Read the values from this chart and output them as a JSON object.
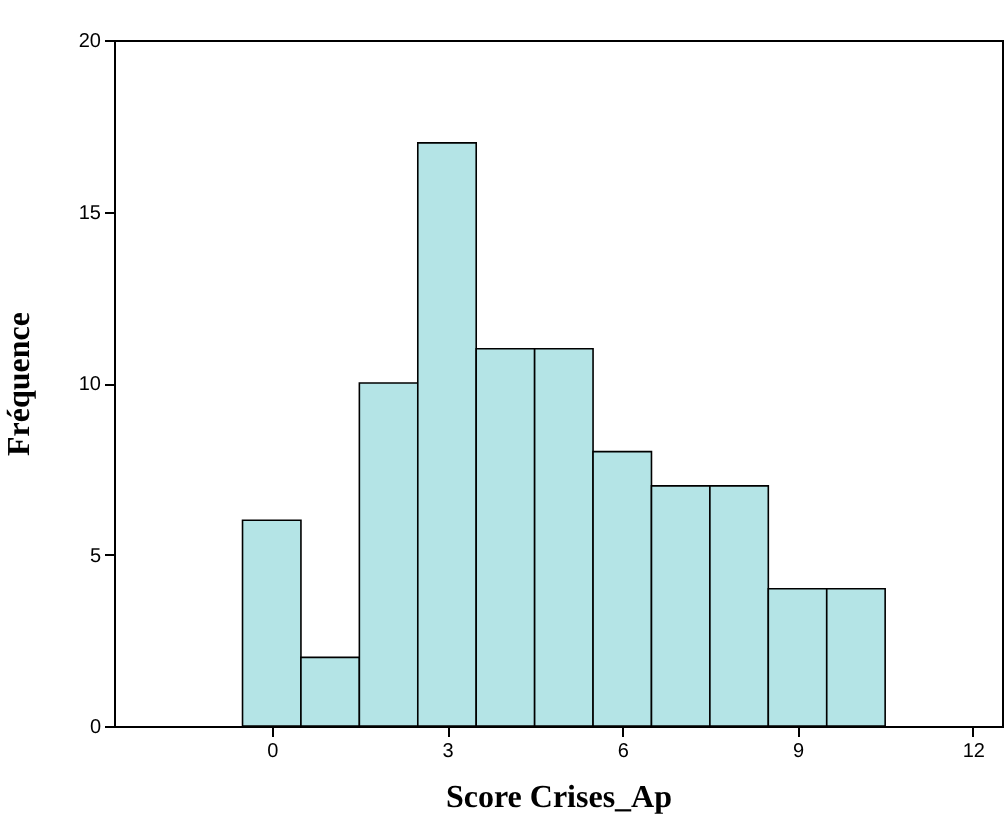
{
  "chart_data": {
    "type": "histogram",
    "xlabel": "Score Crises_Ap",
    "ylabel": "Fréquence",
    "bins": [
      -0.5,
      0.5,
      1.5,
      2.5,
      3.5,
      4.5,
      5.5,
      6.5,
      7.5,
      8.5,
      9.5,
      10.5
    ],
    "values": [
      6,
      2,
      10,
      17,
      11,
      11,
      8,
      7,
      7,
      4,
      4
    ],
    "color": "#b4e4e6",
    "xlim": [
      -2.7,
      12.5
    ],
    "xticks": [
      0,
      3,
      6,
      9,
      12
    ],
    "ylim": [
      0,
      20
    ],
    "yticks": [
      0,
      5,
      10,
      15,
      20
    ],
    "grid": false
  }
}
